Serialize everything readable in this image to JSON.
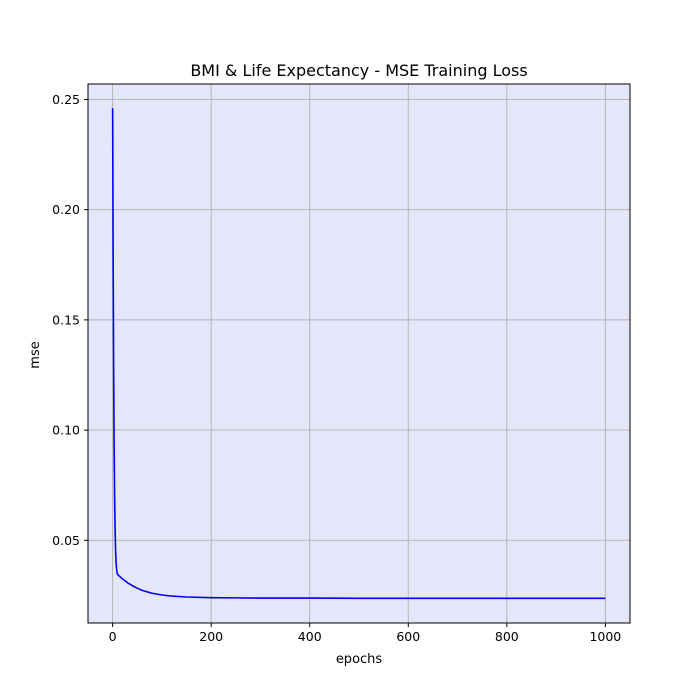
{
  "chart_data": {
    "type": "line",
    "title": "BMI & Life Expectancy - MSE Training Loss",
    "xlabel": "epochs",
    "ylabel": "mse",
    "xlim": [
      -50,
      1050
    ],
    "ylim": [
      0.0125,
      0.257
    ],
    "grid": true,
    "legend": "none",
    "x_ticks": [
      0,
      200,
      400,
      600,
      800,
      1000
    ],
    "x_tick_labels": [
      "0",
      "200",
      "400",
      "600",
      "800",
      "1000"
    ],
    "y_ticks": [
      0.05,
      0.1,
      0.15,
      0.2,
      0.25
    ],
    "y_tick_labels": [
      "0.05",
      "0.10",
      "0.15",
      "0.20",
      "0.25"
    ],
    "series": [
      {
        "color": "#0000ff",
        "x": [
          0,
          1,
          2,
          3,
          4,
          5,
          6,
          7,
          8,
          9,
          10,
          15,
          20,
          30,
          40,
          50,
          60,
          80,
          100,
          120,
          150,
          200,
          250,
          300,
          400,
          500,
          600,
          700,
          800,
          900,
          1000
        ],
        "y": [
          0.246,
          0.18,
          0.13,
          0.095,
          0.07,
          0.055,
          0.045,
          0.04,
          0.037,
          0.0355,
          0.0345,
          0.0335,
          0.0325,
          0.0308,
          0.0294,
          0.0283,
          0.0273,
          0.026,
          0.0252,
          0.0247,
          0.0243,
          0.024,
          0.0239,
          0.0238,
          0.0238,
          0.0237,
          0.0237,
          0.0237,
          0.0237,
          0.0237,
          0.0237
        ]
      }
    ]
  },
  "colors": {
    "plot_background": "#e6e6fa",
    "grid": "#b0b0b0",
    "line": "#0000ff"
  }
}
